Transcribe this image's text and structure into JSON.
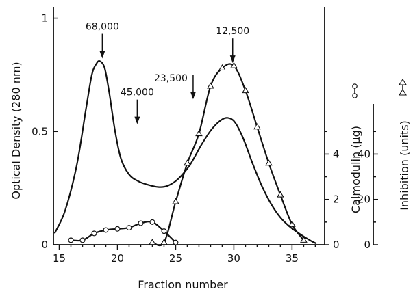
{
  "chart_data": {
    "type": "line",
    "xlabel": "Fraction number",
    "ylabel_left": "Optical Density (280 nm)",
    "ylabel_right_1": "Calmodulin (µg)",
    "ylabel_right_2": "Inhibition (units)",
    "xlim": [
      14.5,
      37.8
    ],
    "ylim_left": [
      0,
      1.05
    ],
    "ylim_right_1": [
      0,
      10.5
    ],
    "ylim_right_2": [
      0,
      105
    ],
    "x_ticks": [
      15,
      20,
      25,
      30,
      35
    ],
    "y_ticks_left": [
      {
        "value": 0,
        "label": "0"
      },
      {
        "value": 0.5,
        "label": "0.5"
      },
      {
        "value": 1,
        "label": "1"
      }
    ],
    "y_ticks_right_1": [
      {
        "value": 0,
        "label": "0"
      },
      {
        "value": 2,
        "label": "2"
      },
      {
        "value": 4,
        "label": "4"
      }
    ],
    "y_ticks_right_2": [
      {
        "value": 0,
        "label": "0"
      },
      {
        "value": 20,
        "label": "20"
      },
      {
        "value": 40,
        "label": "40"
      }
    ],
    "series": [
      {
        "axis": "left",
        "marker": "none",
        "x": [
          14.6,
          15.5,
          16.5,
          17.3,
          17.8,
          18.2,
          18.5,
          18.9,
          19.3,
          19.8,
          20.3,
          21,
          21.8,
          22.6,
          23.5,
          24.3,
          25.2,
          26.2,
          27.2,
          28.1,
          28.9,
          29.5,
          30.1,
          30.8,
          31.6,
          32.4,
          33.2,
          34,
          34.8,
          35.6,
          36.2,
          36.7,
          37.1
        ],
        "values": [
          0.05,
          0.15,
          0.35,
          0.6,
          0.75,
          0.8,
          0.81,
          0.78,
          0.67,
          0.5,
          0.38,
          0.31,
          0.28,
          0.265,
          0.255,
          0.26,
          0.29,
          0.35,
          0.44,
          0.51,
          0.55,
          0.56,
          0.54,
          0.47,
          0.36,
          0.26,
          0.18,
          0.12,
          0.08,
          0.05,
          0.03,
          0.015,
          0.005
        ]
      },
      {
        "axis": "right_1",
        "marker": "circle",
        "x": [
          16,
          17,
          18,
          19,
          20,
          21,
          22,
          23,
          24,
          25
        ],
        "values": [
          0.2,
          0.2,
          0.5,
          0.65,
          0.7,
          0.75,
          0.95,
          1.0,
          0.6,
          0.1
        ]
      },
      {
        "axis": "right_2",
        "marker": "triangle",
        "x": [
          23,
          24,
          25,
          26,
          27,
          28,
          29,
          30,
          31,
          32,
          33,
          34,
          35,
          36
        ],
        "values": [
          1,
          1,
          19,
          36,
          49,
          70,
          78,
          79,
          68,
          52,
          36,
          22,
          9,
          2
        ]
      }
    ],
    "annotations": [
      {
        "label": "68,000",
        "x": 18.7,
        "y_left": 0.81,
        "type": "arrow"
      },
      {
        "label": "45,000",
        "x": 21.7,
        "y_left": 0.52,
        "type": "arrow"
      },
      {
        "label": "23,500",
        "x": 26.5,
        "y_left": 0.63,
        "type": "arrow"
      },
      {
        "label": "12,500",
        "x": 29.9,
        "y_left": 0.79,
        "type": "arrow"
      }
    ]
  }
}
